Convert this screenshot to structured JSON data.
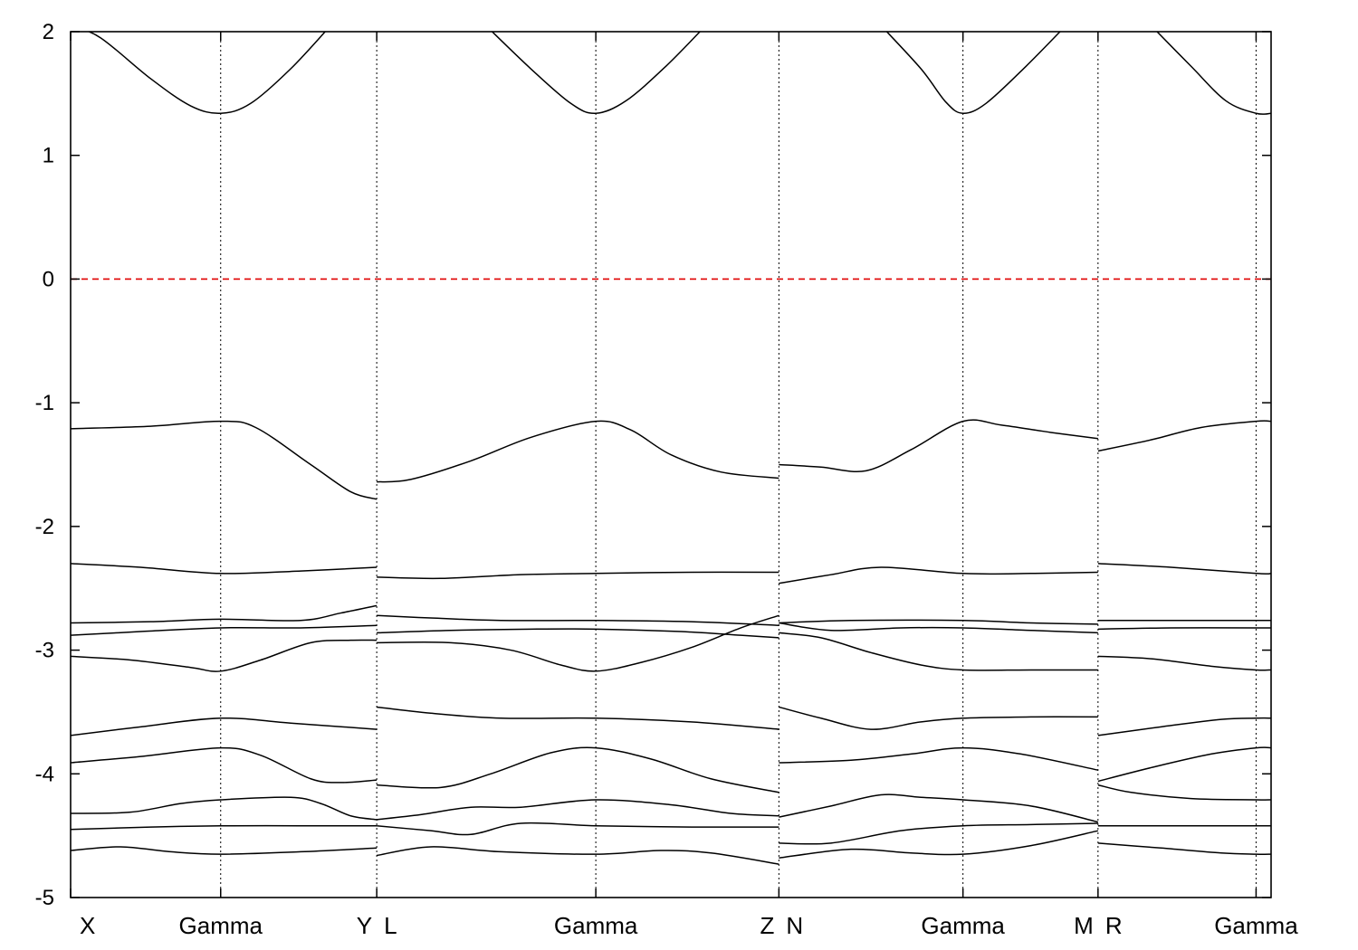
{
  "chart_data": {
    "type": "line",
    "title": "",
    "xlabel": "",
    "ylabel": "",
    "ylim": [
      -5,
      2
    ],
    "yticks": [
      2,
      1,
      0,
      -1,
      -2,
      -3,
      -4,
      -5
    ],
    "xlim": [
      0,
      12
    ],
    "kpoints": [
      {
        "label": "X",
        "x": 0
      },
      {
        "label": "Gamma",
        "x": 1.5
      },
      {
        "label": "Y",
        "x": 3.06
      },
      {
        "label": "L",
        "x": 3.06
      },
      {
        "label": "Gamma",
        "x": 5.25
      },
      {
        "label": "Z",
        "x": 7.08
      },
      {
        "label": "N",
        "x": 7.08
      },
      {
        "label": "Gamma",
        "x": 8.92
      },
      {
        "label": "M",
        "x": 10.27
      },
      {
        "label": "R",
        "x": 10.27
      },
      {
        "label": "Gamma",
        "x": 11.85
      }
    ],
    "segment_boundaries": [
      3.06,
      7.08,
      10.27
    ],
    "fermi_level": {
      "y": 0,
      "color": "#e00000",
      "style": "dashed"
    },
    "grid": "vertical dotted at high-symmetry points",
    "series": [
      {
        "values": [
          [
            0,
            2.05
          ],
          [
            0.3,
            1.95
          ],
          [
            0.8,
            1.62
          ],
          [
            1.2,
            1.4
          ],
          [
            1.5,
            1.34
          ],
          [
            1.8,
            1.42
          ],
          [
            2.2,
            1.7
          ],
          [
            2.6,
            2.05
          ]
        ]
      },
      {
        "values": [
          [
            4.15,
            2.05
          ],
          [
            4.6,
            1.7
          ],
          [
            5.0,
            1.42
          ],
          [
            5.25,
            1.34
          ],
          [
            5.55,
            1.44
          ],
          [
            5.95,
            1.72
          ],
          [
            6.35,
            2.05
          ]
        ]
      },
      {
        "values": [
          [
            8.1,
            2.05
          ],
          [
            8.5,
            1.7
          ],
          [
            8.75,
            1.43
          ],
          [
            8.92,
            1.34
          ],
          [
            9.15,
            1.42
          ],
          [
            9.55,
            1.72
          ],
          [
            9.95,
            2.05
          ]
        ]
      },
      {
        "values": [
          [
            10.8,
            2.05
          ],
          [
            11.2,
            1.72
          ],
          [
            11.55,
            1.44
          ],
          [
            11.85,
            1.34
          ],
          [
            12.0,
            1.34
          ]
        ]
      },
      {
        "values": [
          [
            0,
            -1.21
          ],
          [
            0.8,
            -1.19
          ],
          [
            1.5,
            -1.15
          ],
          [
            1.85,
            -1.2
          ],
          [
            2.4,
            -1.5
          ],
          [
            2.8,
            -1.72
          ],
          [
            3.06,
            -1.78
          ]
        ]
      },
      {
        "values": [
          [
            3.06,
            -1.64
          ],
          [
            3.4,
            -1.62
          ],
          [
            4.0,
            -1.47
          ],
          [
            4.6,
            -1.28
          ],
          [
            5.25,
            -1.15
          ],
          [
            5.6,
            -1.22
          ],
          [
            6.0,
            -1.42
          ],
          [
            6.5,
            -1.56
          ],
          [
            7.08,
            -1.61
          ]
        ]
      },
      {
        "values": [
          [
            7.08,
            -1.5
          ],
          [
            7.5,
            -1.52
          ],
          [
            7.95,
            -1.55
          ],
          [
            8.4,
            -1.38
          ],
          [
            8.92,
            -1.15
          ],
          [
            9.3,
            -1.18
          ],
          [
            9.8,
            -1.24
          ],
          [
            10.27,
            -1.29
          ]
        ]
      },
      {
        "values": [
          [
            10.27,
            -1.39
          ],
          [
            10.8,
            -1.3
          ],
          [
            11.3,
            -1.2
          ],
          [
            11.85,
            -1.15
          ],
          [
            12.0,
            -1.15
          ]
        ]
      },
      {
        "values": [
          [
            0,
            -2.3
          ],
          [
            0.7,
            -2.33
          ],
          [
            1.5,
            -2.38
          ],
          [
            2.3,
            -2.36
          ],
          [
            3.06,
            -2.33
          ]
        ]
      },
      {
        "values": [
          [
            3.06,
            -2.41
          ],
          [
            3.7,
            -2.42
          ],
          [
            4.5,
            -2.39
          ],
          [
            5.25,
            -2.38
          ],
          [
            6.2,
            -2.37
          ],
          [
            7.08,
            -2.37
          ]
        ]
      },
      {
        "values": [
          [
            7.08,
            -2.46
          ],
          [
            7.6,
            -2.39
          ],
          [
            8.1,
            -2.33
          ],
          [
            8.92,
            -2.38
          ],
          [
            9.6,
            -2.38
          ],
          [
            10.27,
            -2.37
          ]
        ]
      },
      {
        "values": [
          [
            10.27,
            -2.3
          ],
          [
            11.0,
            -2.33
          ],
          [
            11.85,
            -2.38
          ],
          [
            12.0,
            -2.38
          ]
        ]
      },
      {
        "values": [
          [
            0,
            -2.78
          ],
          [
            0.8,
            -2.77
          ],
          [
            1.5,
            -2.75
          ],
          [
            2.3,
            -2.76
          ],
          [
            2.7,
            -2.7
          ],
          [
            3.06,
            -2.64
          ]
        ]
      },
      {
        "values": [
          [
            3.06,
            -2.72
          ],
          [
            3.6,
            -2.74
          ],
          [
            4.3,
            -2.76
          ],
          [
            5.25,
            -2.76
          ],
          [
            6.2,
            -2.77
          ],
          [
            7.08,
            -2.8
          ]
        ]
      },
      {
        "values": [
          [
            7.08,
            -2.78
          ],
          [
            7.8,
            -2.76
          ],
          [
            8.92,
            -2.76
          ],
          [
            9.6,
            -2.78
          ],
          [
            10.27,
            -2.79
          ]
        ]
      },
      {
        "values": [
          [
            10.27,
            -2.76
          ],
          [
            11.0,
            -2.76
          ],
          [
            11.85,
            -2.76
          ],
          [
            12.0,
            -2.76
          ]
        ]
      },
      {
        "values": [
          [
            0,
            -2.88
          ],
          [
            0.7,
            -2.85
          ],
          [
            1.5,
            -2.82
          ],
          [
            2.3,
            -2.82
          ],
          [
            3.06,
            -2.8
          ]
        ]
      },
      {
        "values": [
          [
            3.06,
            -2.86
          ],
          [
            3.8,
            -2.84
          ],
          [
            4.6,
            -2.83
          ],
          [
            5.25,
            -2.83
          ],
          [
            6.1,
            -2.85
          ],
          [
            6.7,
            -2.88
          ],
          [
            7.08,
            -2.9
          ]
        ]
      },
      {
        "values": [
          [
            7.08,
            -2.78
          ],
          [
            7.6,
            -2.84
          ],
          [
            8.3,
            -2.82
          ],
          [
            8.92,
            -2.82
          ],
          [
            9.6,
            -2.84
          ],
          [
            10.27,
            -2.86
          ]
        ]
      },
      {
        "values": [
          [
            10.27,
            -2.83
          ],
          [
            11.0,
            -2.82
          ],
          [
            11.85,
            -2.82
          ],
          [
            12.0,
            -2.82
          ]
        ]
      },
      {
        "values": [
          [
            0,
            -3.05
          ],
          [
            0.6,
            -3.08
          ],
          [
            1.2,
            -3.14
          ],
          [
            1.5,
            -3.17
          ],
          [
            1.9,
            -3.08
          ],
          [
            2.4,
            -2.94
          ],
          [
            2.8,
            -2.92
          ],
          [
            3.06,
            -2.92
          ]
        ]
      },
      {
        "values": [
          [
            3.06,
            -2.94
          ],
          [
            3.8,
            -2.94
          ],
          [
            4.4,
            -3.0
          ],
          [
            4.9,
            -3.12
          ],
          [
            5.25,
            -3.17
          ],
          [
            5.7,
            -3.1
          ],
          [
            6.2,
            -2.98
          ],
          [
            6.7,
            -2.82
          ],
          [
            7.08,
            -2.72
          ]
        ]
      },
      {
        "values": [
          [
            7.08,
            -2.86
          ],
          [
            7.5,
            -2.9
          ],
          [
            8.0,
            -3.02
          ],
          [
            8.5,
            -3.12
          ],
          [
            8.92,
            -3.16
          ],
          [
            9.6,
            -3.16
          ],
          [
            10.27,
            -3.16
          ]
        ]
      },
      {
        "values": [
          [
            10.27,
            -3.05
          ],
          [
            10.8,
            -3.07
          ],
          [
            11.4,
            -3.13
          ],
          [
            11.85,
            -3.16
          ],
          [
            12.0,
            -3.16
          ]
        ]
      },
      {
        "values": [
          [
            0,
            -3.69
          ],
          [
            0.7,
            -3.62
          ],
          [
            1.5,
            -3.55
          ],
          [
            2.2,
            -3.59
          ],
          [
            3.06,
            -3.64
          ]
        ]
      },
      {
        "values": [
          [
            3.06,
            -3.46
          ],
          [
            3.6,
            -3.51
          ],
          [
            4.3,
            -3.55
          ],
          [
            5.25,
            -3.55
          ],
          [
            6.2,
            -3.58
          ],
          [
            7.08,
            -3.64
          ]
        ]
      },
      {
        "values": [
          [
            7.08,
            -3.46
          ],
          [
            7.5,
            -3.55
          ],
          [
            8.0,
            -3.64
          ],
          [
            8.5,
            -3.58
          ],
          [
            8.92,
            -3.55
          ],
          [
            9.6,
            -3.54
          ],
          [
            10.27,
            -3.54
          ]
        ]
      },
      {
        "values": [
          [
            10.27,
            -3.69
          ],
          [
            10.9,
            -3.62
          ],
          [
            11.5,
            -3.56
          ],
          [
            11.85,
            -3.55
          ],
          [
            12.0,
            -3.55
          ]
        ]
      },
      {
        "values": [
          [
            0,
            -3.91
          ],
          [
            0.7,
            -3.86
          ],
          [
            1.5,
            -3.79
          ],
          [
            1.9,
            -3.85
          ],
          [
            2.4,
            -4.04
          ],
          [
            2.7,
            -4.07
          ],
          [
            3.06,
            -4.05
          ]
        ]
      },
      {
        "values": [
          [
            3.06,
            -4.09
          ],
          [
            3.7,
            -4.11
          ],
          [
            4.2,
            -4.0
          ],
          [
            4.8,
            -3.83
          ],
          [
            5.25,
            -3.79
          ],
          [
            5.8,
            -3.88
          ],
          [
            6.4,
            -4.04
          ],
          [
            7.08,
            -4.15
          ]
        ]
      },
      {
        "values": [
          [
            7.08,
            -3.91
          ],
          [
            7.8,
            -3.89
          ],
          [
            8.4,
            -3.84
          ],
          [
            8.92,
            -3.79
          ],
          [
            9.5,
            -3.84
          ],
          [
            10.27,
            -3.97
          ]
        ]
      },
      {
        "values": [
          [
            10.27,
            -4.06
          ],
          [
            10.8,
            -3.95
          ],
          [
            11.4,
            -3.84
          ],
          [
            11.85,
            -3.79
          ],
          [
            12.0,
            -3.79
          ]
        ]
      },
      {
        "values": [
          [
            0,
            -4.32
          ],
          [
            0.6,
            -4.31
          ],
          [
            1.1,
            -4.24
          ],
          [
            1.5,
            -4.21
          ],
          [
            2.2,
            -4.19
          ],
          [
            2.5,
            -4.24
          ],
          [
            2.8,
            -4.34
          ],
          [
            3.06,
            -4.37
          ]
        ]
      },
      {
        "values": [
          [
            3.06,
            -4.37
          ],
          [
            3.5,
            -4.33
          ],
          [
            4.0,
            -4.27
          ],
          [
            4.5,
            -4.27
          ],
          [
            5.25,
            -4.21
          ],
          [
            6.0,
            -4.25
          ],
          [
            6.6,
            -4.32
          ],
          [
            7.08,
            -4.34
          ]
        ]
      },
      {
        "values": [
          [
            7.08,
            -4.35
          ],
          [
            7.6,
            -4.26
          ],
          [
            8.1,
            -4.17
          ],
          [
            8.5,
            -4.19
          ],
          [
            8.92,
            -4.21
          ],
          [
            9.6,
            -4.26
          ],
          [
            10.27,
            -4.39
          ]
        ]
      },
      {
        "values": [
          [
            10.27,
            -4.09
          ],
          [
            10.6,
            -4.15
          ],
          [
            11.2,
            -4.2
          ],
          [
            11.85,
            -4.21
          ],
          [
            12.0,
            -4.21
          ]
        ]
      },
      {
        "values": [
          [
            0,
            -4.45
          ],
          [
            0.8,
            -4.43
          ],
          [
            1.5,
            -4.42
          ],
          [
            2.3,
            -4.42
          ],
          [
            3.06,
            -4.42
          ]
        ]
      },
      {
        "values": [
          [
            3.06,
            -4.42
          ],
          [
            3.6,
            -4.46
          ],
          [
            4.0,
            -4.49
          ],
          [
            4.5,
            -4.4
          ],
          [
            5.25,
            -4.42
          ],
          [
            6.2,
            -4.43
          ],
          [
            7.08,
            -4.43
          ]
        ]
      },
      {
        "values": [
          [
            7.08,
            -4.56
          ],
          [
            7.6,
            -4.56
          ],
          [
            8.3,
            -4.46
          ],
          [
            8.92,
            -4.42
          ],
          [
            9.6,
            -4.41
          ],
          [
            10.27,
            -4.4
          ]
        ]
      },
      {
        "values": [
          [
            10.27,
            -4.42
          ],
          [
            11.0,
            -4.42
          ],
          [
            11.85,
            -4.42
          ],
          [
            12.0,
            -4.42
          ]
        ]
      },
      {
        "values": [
          [
            0,
            -4.62
          ],
          [
            0.5,
            -4.59
          ],
          [
            1.0,
            -4.63
          ],
          [
            1.5,
            -4.65
          ],
          [
            2.3,
            -4.63
          ],
          [
            3.06,
            -4.6
          ]
        ]
      },
      {
        "values": [
          [
            3.06,
            -4.66
          ],
          [
            3.6,
            -4.59
          ],
          [
            4.3,
            -4.63
          ],
          [
            5.25,
            -4.65
          ],
          [
            5.9,
            -4.62
          ],
          [
            6.4,
            -4.64
          ],
          [
            7.08,
            -4.73
          ]
        ]
      },
      {
        "values": [
          [
            7.08,
            -4.68
          ],
          [
            7.8,
            -4.61
          ],
          [
            8.4,
            -4.64
          ],
          [
            8.92,
            -4.65
          ],
          [
            9.6,
            -4.58
          ],
          [
            10.27,
            -4.46
          ]
        ]
      },
      {
        "values": [
          [
            10.27,
            -4.56
          ],
          [
            10.9,
            -4.6
          ],
          [
            11.5,
            -4.64
          ],
          [
            11.85,
            -4.65
          ],
          [
            12.0,
            -4.65
          ]
        ]
      }
    ]
  }
}
